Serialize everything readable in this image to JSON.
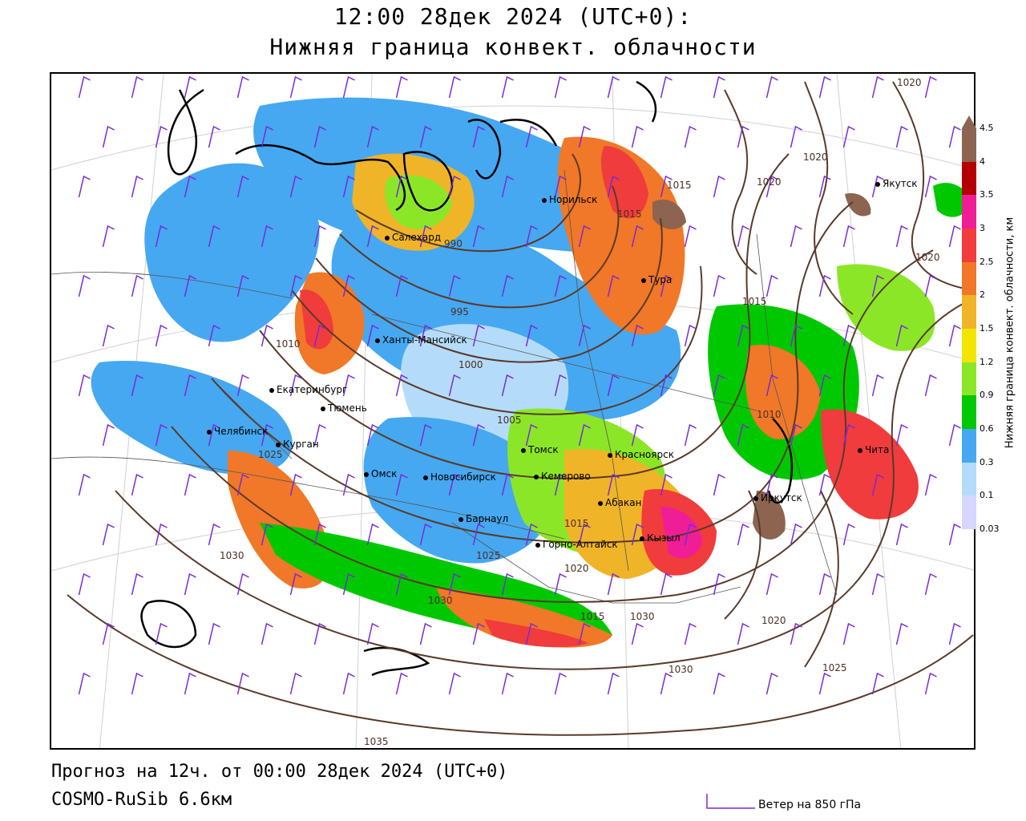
{
  "header": {
    "time_line": "12:00 28дек 2024 (UTC+0):",
    "param_line": "Нижняя граница конвект. облачности"
  },
  "footer": {
    "forecast_line": "Прогноз на 12ч. от 00:00 28дек 2024 (UTC+0)",
    "model_line": "COSMO-RuSib 6.6км",
    "wind_legend": "Ветер на 850 гПа"
  },
  "legend": {
    "title": "Нижняя граница конвект. облачности, км",
    "ticks": [
      "0.03",
      "0.1",
      "0.3",
      "0.6",
      "0.9",
      "1.2",
      "1.5",
      "2",
      "2.5",
      "3",
      "3.5",
      "4",
      "4.5"
    ],
    "colors": [
      "#d6d6ff",
      "#b4dcfa",
      "#46a8f0",
      "#00c800",
      "#8ce628",
      "#f2e600",
      "#f0b428",
      "#f07828",
      "#f03c3c",
      "#f01e96",
      "#b40000",
      "#8c6450"
    ]
  },
  "cities": [
    "Салехард",
    "Норильск",
    "Тура",
    "Якутск",
    "Ханты-Мансийск",
    "Екатеринбург",
    "Тюмень",
    "Челябинск",
    "Курган",
    "Омск",
    "Новосибирск",
    "Томск",
    "Кемерово",
    "Красноярск",
    "Барнаул",
    "Абакан",
    "Горно-Алтайск",
    "Кызыл",
    "Иркутск",
    "Чита"
  ],
  "isobars": [
    "1020",
    "1020",
    "1020",
    "1020",
    "1015",
    "1015",
    "1015",
    "990",
    "995",
    "1000",
    "1005",
    "1010",
    "1015",
    "1025",
    "1030",
    "1025",
    "1030",
    "1035",
    "1020",
    "1030",
    "1030",
    "1020",
    "1025",
    "1015",
    "1010"
  ],
  "colors": {
    "isobar": "#5a3a2a",
    "wind": "#7a2ad8",
    "coast": "#000000"
  }
}
